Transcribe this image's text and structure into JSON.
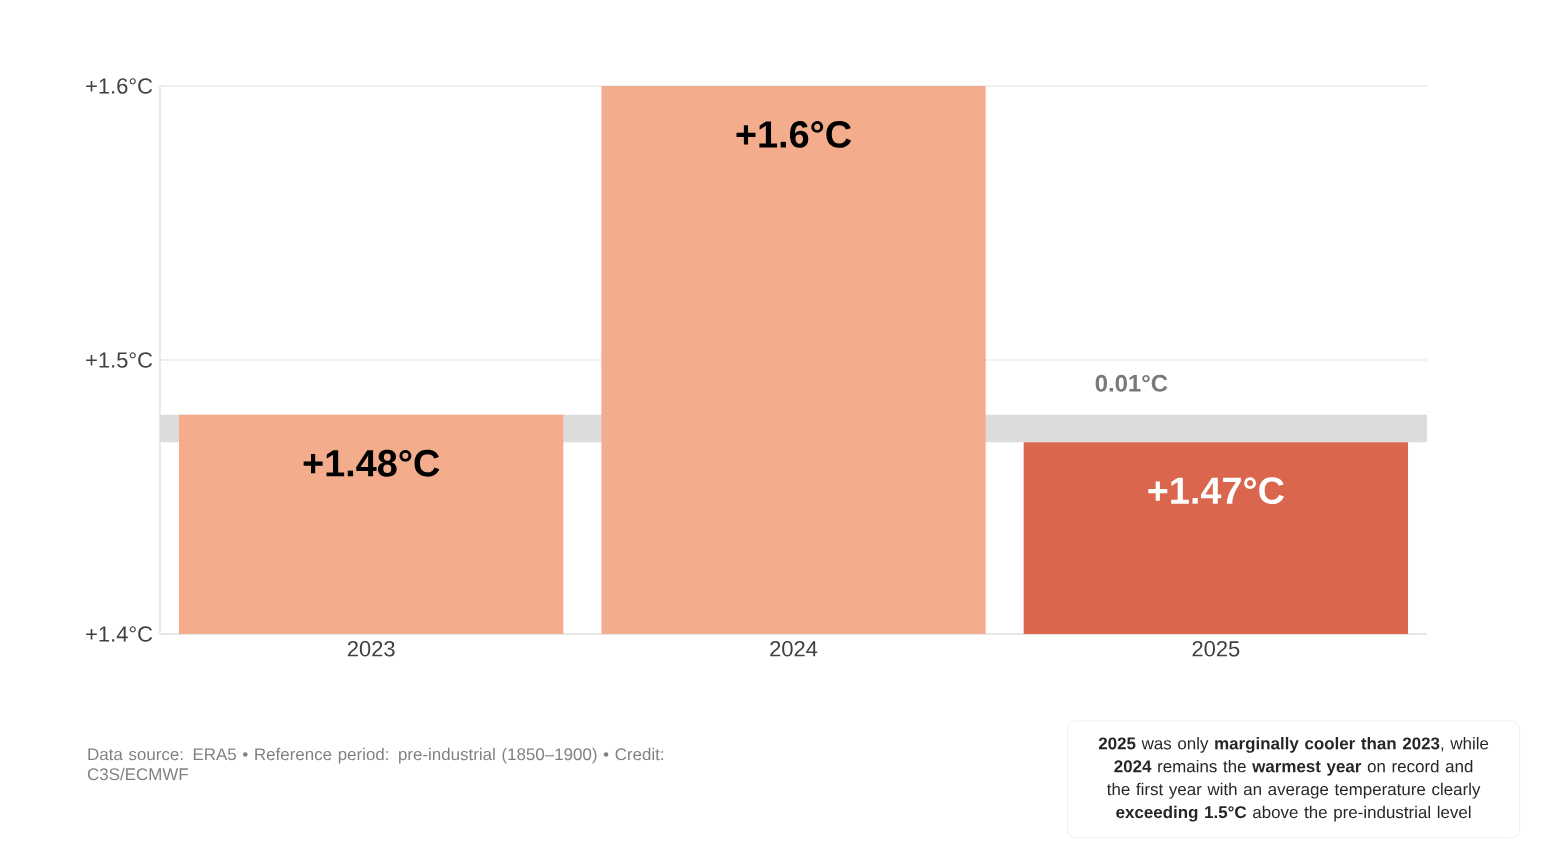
{
  "chart_data": {
    "type": "bar",
    "categories": [
      "2023",
      "2024",
      "2025"
    ],
    "values": [
      1.48,
      1.6,
      1.47
    ],
    "colors": [
      "#f3ad8d",
      "#f3ad8d",
      "#d9664d"
    ],
    "value_labels": [
      "+1.48°C",
      "+1.6°C",
      "+1.47°C"
    ],
    "ylim": [
      1.4,
      1.6
    ],
    "yticks": [
      {
        "value": 1.4,
        "label": "+1.4°C"
      },
      {
        "value": 1.5,
        "label": "+1.5°C"
      },
      {
        "value": 1.6,
        "label": "+1.6°C"
      }
    ],
    "grid": "y",
    "bands": [
      {
        "axis": "y",
        "from": 1.47,
        "to": 1.48,
        "label": "0.01°C",
        "color": "#dcdcdc"
      }
    ],
    "annotations": [
      "**2025** was only **marginally cooler than 2023**, while **2024** remains the **warmest year** on record and the first year with an average temperature clearly **exceeding 1.5°C** above the pre-industrial level",
      "Data source: ERA5 • Reference period: pre-industrial (1850–1900) • Credit: C3S/ECMWF"
    ]
  }
}
